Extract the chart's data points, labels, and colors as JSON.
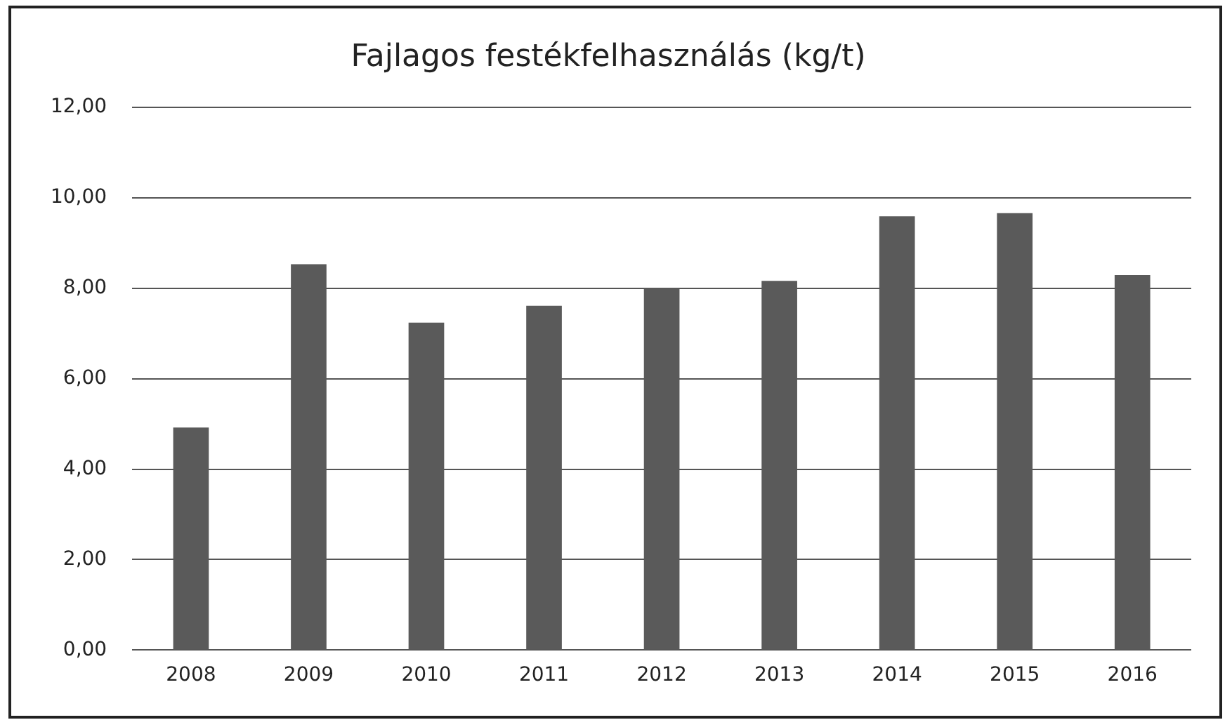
{
  "chart_data": {
    "type": "bar",
    "title": "Fajlagos festékfelhasználás (kg/t)",
    "categories": [
      "2008",
      "2009",
      "2010",
      "2011",
      "2012",
      "2013",
      "2014",
      "2015",
      "2016"
    ],
    "values": [
      4.92,
      8.53,
      7.24,
      7.61,
      8.0,
      8.16,
      9.59,
      9.66,
      8.29
    ],
    "color": "#5a5a5a",
    "ylim": [
      0,
      12
    ],
    "yticks": [
      {
        "value": 0,
        "label": "0,00"
      },
      {
        "value": 2,
        "label": "2,00"
      },
      {
        "value": 4,
        "label": "4,00"
      },
      {
        "value": 6,
        "label": "6,00"
      },
      {
        "value": 8,
        "label": "8,00"
      },
      {
        "value": 10,
        "label": "10,00"
      },
      {
        "value": 12,
        "label": "12,00"
      }
    ],
    "grid": "y",
    "legend": false
  }
}
